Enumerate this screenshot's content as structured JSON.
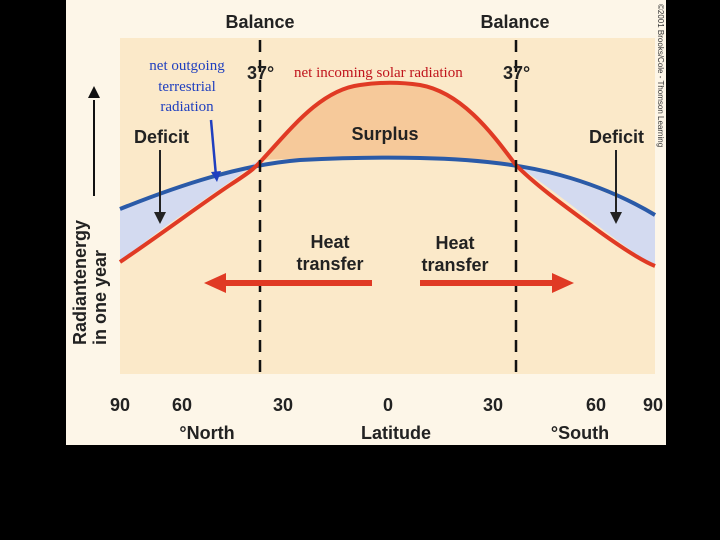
{
  "figure": {
    "copyright": "©2001 Brooks/Cole - Thomson Learning",
    "balance_left": "Balance",
    "balance_right": "Balance",
    "angle_left": "37°",
    "angle_right": "37°",
    "deficit_left": "Deficit",
    "deficit_right": "Deficit",
    "surplus": "Surplus",
    "heat_transfer_left": [
      "Heat",
      "transfer"
    ],
    "heat_transfer_right": [
      "Heat",
      "transfer"
    ],
    "y_axis_label": [
      "Radiantenergy",
      "in one year"
    ],
    "x_ticks": [
      "90",
      "60",
      "30",
      "0",
      "30",
      "60",
      "90"
    ],
    "x_label_north": "°North",
    "x_label_center": "Latitude",
    "x_label_south": "°South"
  },
  "annotations": {
    "outgoing": [
      "net outgoing",
      "terrestrial",
      "radiation"
    ],
    "incoming": "net incoming solar radiation"
  },
  "colors": {
    "panel_bg": "#fdf6e8",
    "plot_bg": "#fbe9c9",
    "incoming_curve": "#e03a24",
    "outgoing_curve": "#2a5aa8",
    "surplus_fill": "#f6c99a",
    "deficit_fill": "#d3daf0",
    "annotation_blue": "#1f3fbf",
    "annotation_red": "#c0141c"
  }
}
